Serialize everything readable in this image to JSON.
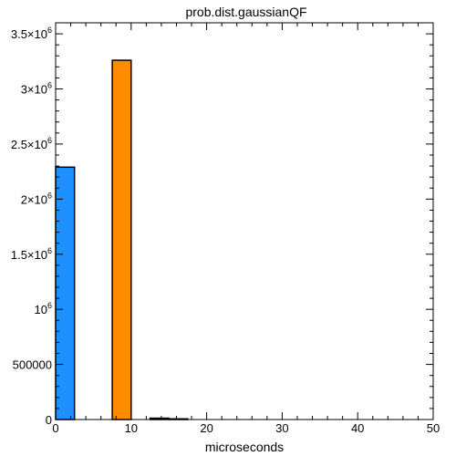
{
  "chart_data": {
    "type": "bar",
    "title": "prob.dist.gaussianQF",
    "xlabel": "microseconds",
    "ylabel": "",
    "xlim": [
      0,
      50
    ],
    "ylim": [
      0,
      3600000
    ],
    "grid": false,
    "x_ticks": [
      0,
      10,
      20,
      30,
      40,
      50
    ],
    "x_tick_labels": [
      "0",
      "10",
      "20",
      "30",
      "40",
      "50"
    ],
    "y_ticks": [
      0,
      500000,
      1000000,
      1500000,
      2000000,
      2500000,
      3000000,
      3500000
    ],
    "y_tick_labels": [
      {
        "main": "0",
        "exp": ""
      },
      {
        "main": "500000",
        "exp": ""
      },
      {
        "main": "10",
        "exp": "6"
      },
      {
        "main": "1.5×10",
        "exp": "6"
      },
      {
        "main": "2×10",
        "exp": "6"
      },
      {
        "main": "2.5×10",
        "exp": "6"
      },
      {
        "main": "3×10",
        "exp": "6"
      },
      {
        "main": "3.5×10",
        "exp": "6"
      }
    ],
    "bins": [
      {
        "x0": 0,
        "x1": 2.5,
        "value": 2290000,
        "color": "#1e90ff"
      },
      {
        "x0": 7.5,
        "x1": 10,
        "value": 3260000,
        "color": "#ff8c00"
      },
      {
        "x0": 12.5,
        "x1": 15,
        "value": 12000,
        "color": "#ff8c00"
      },
      {
        "x0": 15,
        "x1": 17.5,
        "value": 6000,
        "color": "#ff8c00"
      }
    ]
  }
}
